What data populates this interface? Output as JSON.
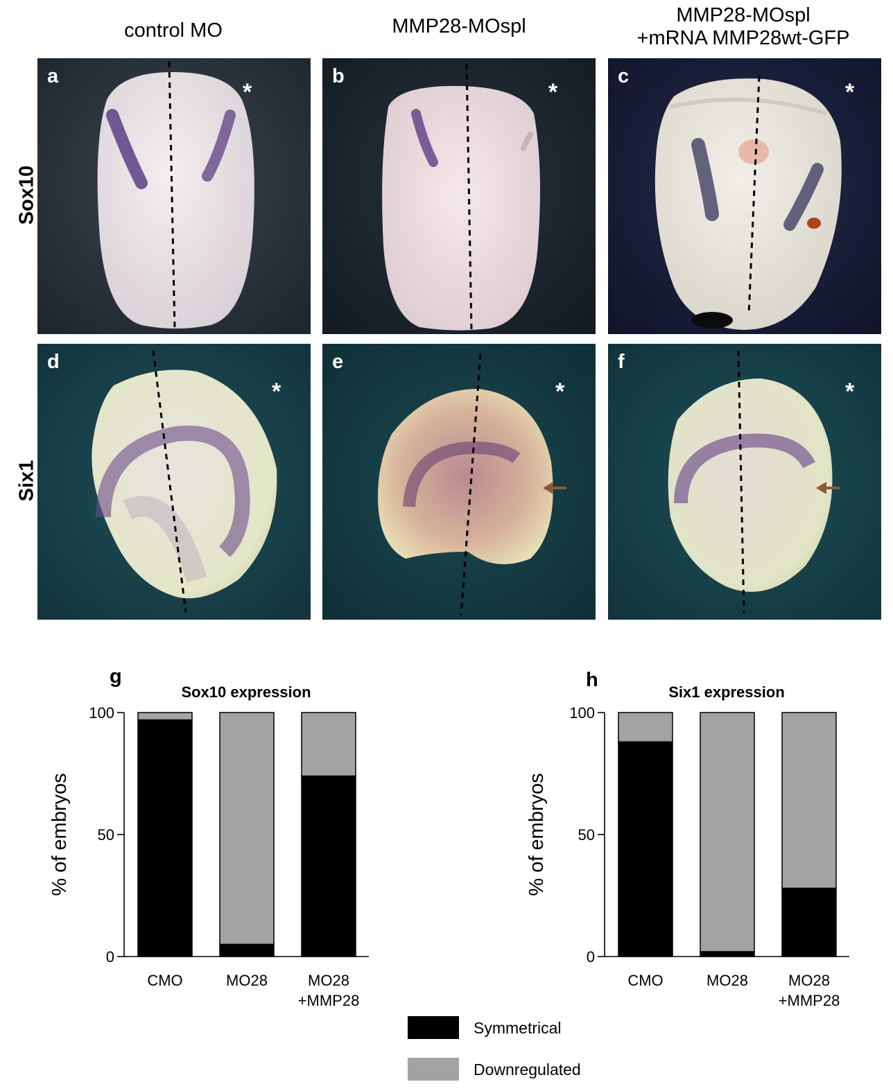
{
  "columns": [
    {
      "lines": [
        "control MO"
      ]
    },
    {
      "lines": [
        "MMP28-MOspl"
      ]
    },
    {
      "lines": [
        "MMP28-MOspl",
        "+mRNA MMP28wt-GFP"
      ]
    }
  ],
  "rows": [
    "Sox10",
    "Six1"
  ],
  "panels": [
    {
      "label": "a",
      "marker": "*"
    },
    {
      "label": "b",
      "marker": "*"
    },
    {
      "label": "c",
      "marker": "*"
    },
    {
      "label": "d",
      "marker": "*"
    },
    {
      "label": "e",
      "marker": "*"
    },
    {
      "label": "f",
      "marker": "*"
    }
  ],
  "colors": {
    "symmetrical": "#000000",
    "downregulated": "#a3a3a6",
    "panel_bg_top": "#1f2a33",
    "panel_bg_bottom": "#14393f",
    "stain": "#5d3f82",
    "arrow": "#8a5a34"
  },
  "chart_data": [
    {
      "panel_label": "g",
      "type": "bar",
      "stacked": true,
      "title": "Sox10 expression",
      "ylabel": "% of embryos",
      "xlabel": "",
      "ylim": [
        0,
        100
      ],
      "yticks": [
        0,
        50,
        100
      ],
      "categories": [
        [
          "CMO"
        ],
        [
          "MO28"
        ],
        [
          "MO28",
          "+MMP28"
        ]
      ],
      "series": [
        {
          "name": "Symmetrical",
          "values": [
            97,
            5,
            74
          ]
        },
        {
          "name": "Downregulated",
          "values": [
            3,
            95,
            26
          ]
        }
      ]
    },
    {
      "panel_label": "h",
      "type": "bar",
      "stacked": true,
      "title": "Six1 expression",
      "ylabel": "% of embryos",
      "xlabel": "",
      "ylim": [
        0,
        100
      ],
      "yticks": [
        0,
        50,
        100
      ],
      "categories": [
        [
          "CMO"
        ],
        [
          "MO28"
        ],
        [
          "MO28",
          "+MMP28"
        ]
      ],
      "series": [
        {
          "name": "Symmetrical",
          "values": [
            88,
            2,
            28
          ]
        },
        {
          "name": "Downregulated",
          "values": [
            12,
            98,
            72
          ]
        }
      ]
    }
  ],
  "legend": [
    {
      "label": "Symmetrical",
      "color": "#000000"
    },
    {
      "label": "Downregulated",
      "color": "#a3a3a6"
    }
  ]
}
